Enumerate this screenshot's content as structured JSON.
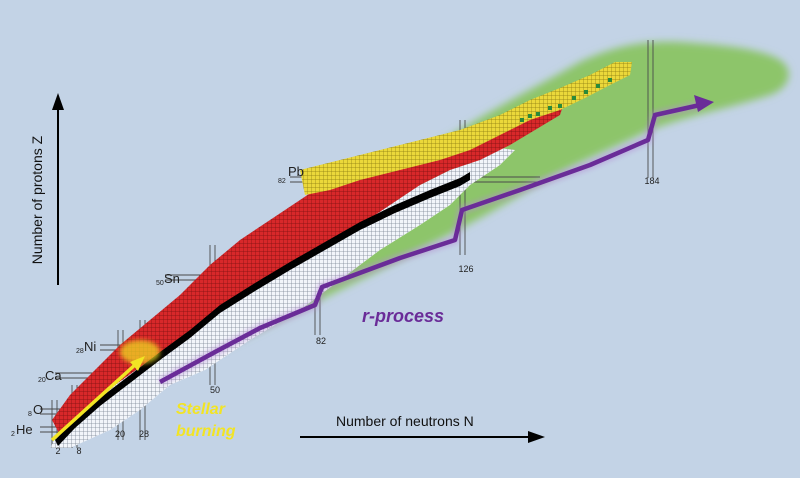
{
  "axes": {
    "y_label": "Number of protons Z",
    "x_label": "Number of neutrons N"
  },
  "elements": [
    {
      "symbol": "He",
      "z": "2"
    },
    {
      "symbol": "O",
      "z": "8"
    },
    {
      "symbol": "Ca",
      "z": "20"
    },
    {
      "symbol": "Ni",
      "z": "28"
    },
    {
      "symbol": "Sn",
      "z": "50"
    },
    {
      "symbol": "Pb",
      "z": "82"
    }
  ],
  "magic_neutrons": [
    "2",
    "8",
    "20",
    "28",
    "50",
    "82",
    "126",
    "184"
  ],
  "processes": {
    "stellar": "Stellar\nburning",
    "stellar_line1": "Stellar",
    "stellar_line2": "burning",
    "r_process": "r-process"
  },
  "colors": {
    "background": "#c3d3e6",
    "r_process_region": "#8dc56a",
    "stable": "#000000",
    "neutron_rich_known": "#e8eef6",
    "proton_rich_known": "#d42a2a",
    "exotic": "#e8d838",
    "r_process_path": "#6a2c98",
    "stellar_arrow": "#f2e424",
    "stellar_text": "#f2e424"
  }
}
